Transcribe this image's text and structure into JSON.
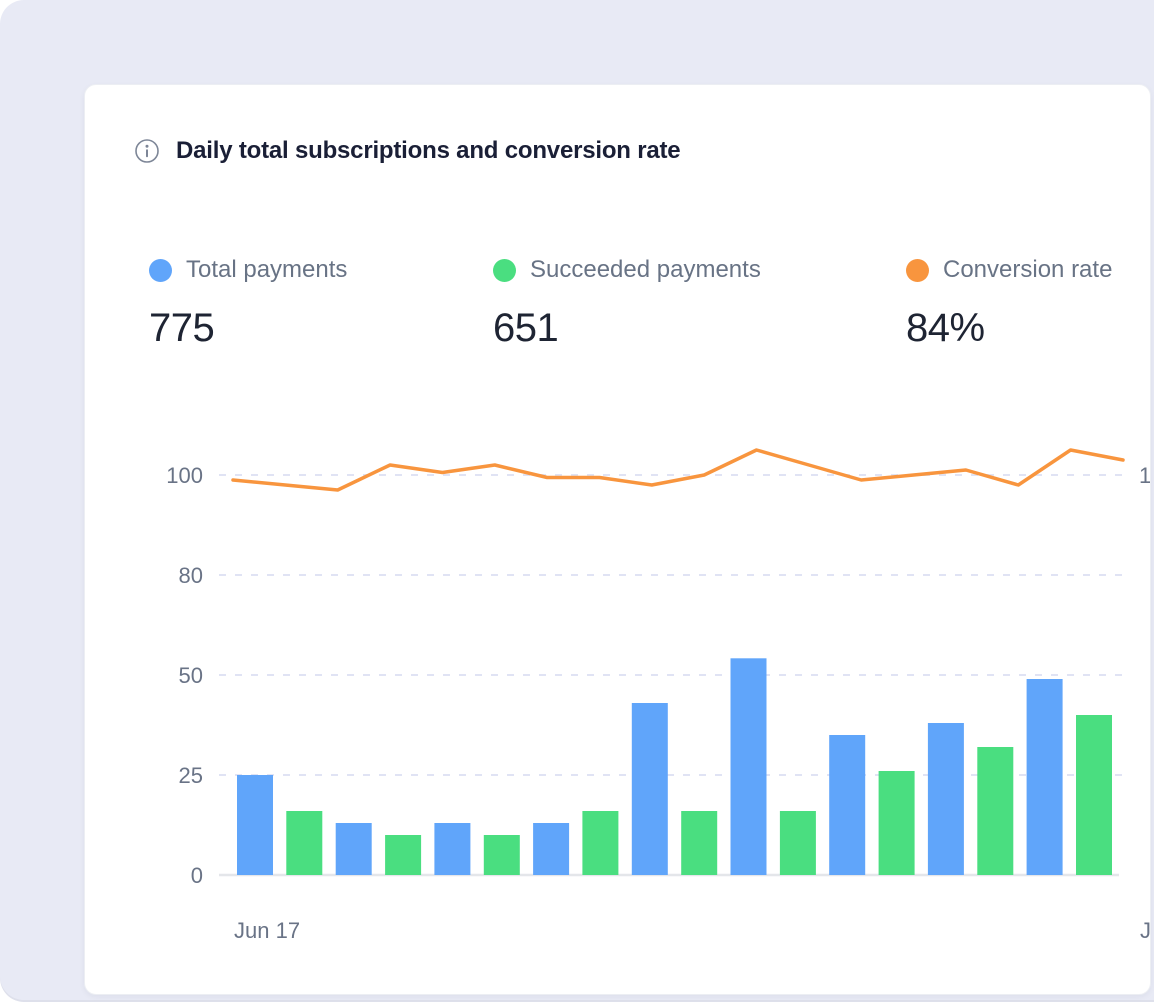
{
  "card": {
    "title": "Daily total subscriptions and conversion rate",
    "legend": [
      {
        "label": "Total payments",
        "value": "775",
        "color": "#60a5fa"
      },
      {
        "label": "Succeeded payments",
        "value": "651",
        "color": "#4ade80"
      },
      {
        "label": "Conversion rate",
        "value": "84%",
        "color": "#f8953e"
      }
    ]
  },
  "colors": {
    "page_background": "#e8eaf5",
    "card_background": "#ffffff",
    "total_payments_bar": "#60a5fa",
    "succeeded_payments_bar": "#4ade80",
    "conversion_rate_line": "#f8953e",
    "axis_text": "#697386",
    "gridline": "#e0e3f4"
  },
  "chart_data": {
    "type": "bar+line",
    "title": "Daily total subscriptions and conversion rate",
    "summary": {
      "total_payments": "775",
      "succeeded_payments": "651",
      "conversion_rate": "84%"
    },
    "legend_position": "top",
    "grid": "dashed horizontal gridlines",
    "y_axis": {
      "ticks": [
        0,
        25,
        50,
        80,
        100
      ],
      "right_label_partial": "1"
    },
    "x_axis": {
      "left_label": "Jun 17",
      "right_label_partial": "J"
    },
    "bar_arrangement": "alternating per day: total then succeeded",
    "series": [
      {
        "name": "Total payments",
        "type": "bar",
        "color": "#60a5fa",
        "values": [
          25,
          13,
          13,
          13,
          43,
          55,
          35,
          38,
          49
        ]
      },
      {
        "name": "Succeeded payments",
        "type": "bar",
        "color": "#4ade80",
        "values": [
          16,
          10,
          10,
          16,
          16,
          16,
          26,
          32,
          40
        ]
      },
      {
        "name": "Conversion rate",
        "type": "line",
        "color": "#f8953e",
        "axis": "right",
        "values": [
          99,
          98,
          97,
          102,
          100.5,
          102,
          99.5,
          99.5,
          98,
          100,
          105,
          102,
          99,
          100,
          101,
          98,
          105,
          103
        ]
      }
    ]
  }
}
